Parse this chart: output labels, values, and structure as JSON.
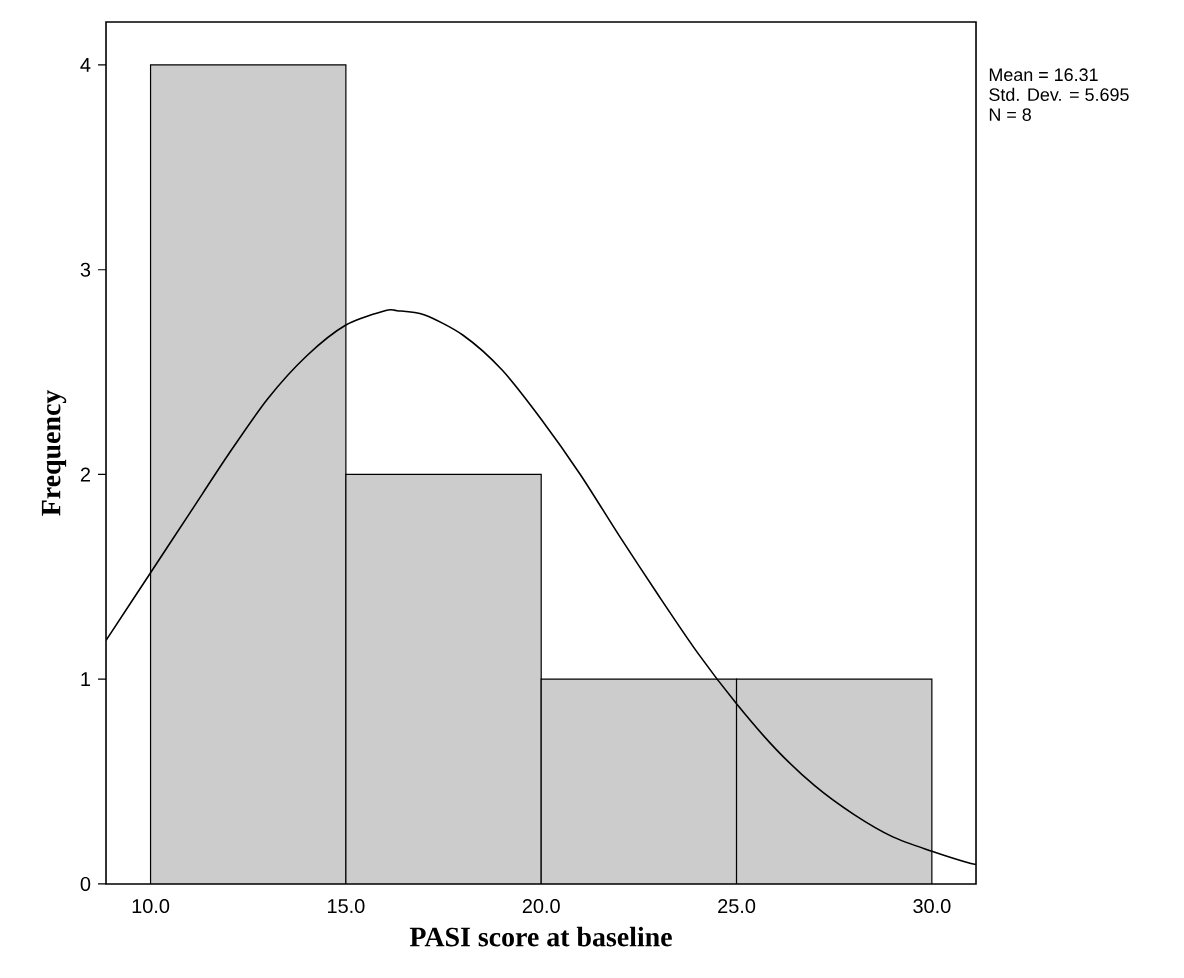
{
  "chart_data": {
    "type": "histogram",
    "xlabel": "PASI score at baseline",
    "ylabel": "Frequency",
    "series": [
      {
        "bins": [
          10,
          15,
          20,
          25,
          30
        ],
        "values": [
          4,
          2,
          1,
          1
        ],
        "color": "#cccccc"
      },
      {
        "type": "line",
        "color": "#000000",
        "x": [
          8.86,
          9,
          10,
          11,
          12,
          13,
          14,
          15,
          16,
          16.31,
          17,
          18,
          19,
          20,
          21,
          22,
          23,
          24,
          25,
          26,
          27,
          28,
          29,
          30,
          31,
          31.13
        ],
        "values": [
          1.19,
          1.23,
          1.52,
          1.81,
          2.1,
          2.37,
          2.58,
          2.73,
          2.8,
          2.8,
          2.78,
          2.68,
          2.51,
          2.27,
          2.0,
          1.7,
          1.41,
          1.13,
          0.88,
          0.66,
          0.48,
          0.34,
          0.23,
          0.16,
          0.1,
          0.1
        ]
      }
    ],
    "xlim": [
      8.86,
      31.13
    ],
    "ylim": [
      0,
      4.21
    ],
    "xticks": [
      {
        "value": 10,
        "label": "10.0"
      },
      {
        "value": 15,
        "label": "15.0"
      },
      {
        "value": 20,
        "label": "20.0"
      },
      {
        "value": 25,
        "label": "25.0"
      },
      {
        "value": 30,
        "label": "30.0"
      }
    ],
    "yticks": [
      0,
      1,
      2,
      3,
      4
    ],
    "annotations": [
      "Mean = 16.31",
      "Std. Dev. = 5.695",
      "N = 8"
    ]
  }
}
